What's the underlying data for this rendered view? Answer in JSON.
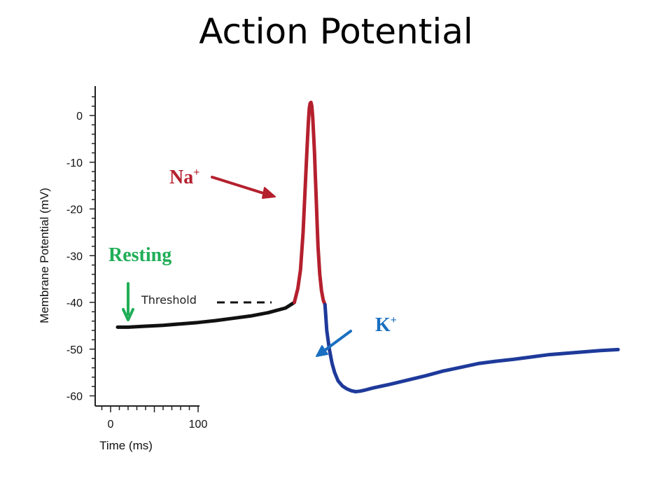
{
  "title": "Action Potential",
  "colors": {
    "resting_trace": "#111111",
    "depolarization_trace": "#b5202e",
    "repolarization_trace": "#1e3a9a",
    "na_label": "#b5202e",
    "k_label": "#1a6fc0",
    "resting_label": "#1fae56"
  },
  "annotations": {
    "na_label": "Na",
    "na_charge": "+",
    "k_label": "K",
    "k_charge": "+",
    "resting_label": "Resting",
    "threshold_label": "Threshold"
  },
  "chart_data": {
    "type": "line",
    "title": "",
    "xlabel": "Time (ms)",
    "ylabel": "Membrane Potential (mV)",
    "xlim": [
      -18,
      580
    ],
    "ylim": [
      -62,
      6
    ],
    "x_ticks": [
      0,
      100
    ],
    "y_ticks": [
      0,
      -10,
      -20,
      -30,
      -40,
      -50,
      -60
    ],
    "threshold_mv": -40,
    "grid": false,
    "legend": "none",
    "series": [
      {
        "segment": "resting",
        "x": [
          8,
          20,
          40,
          60,
          80,
          100,
          120,
          140,
          160,
          180,
          200,
          210
        ],
        "y": [
          -45.3,
          -45.3,
          -45.1,
          -44.9,
          -44.6,
          -44.3,
          -43.9,
          -43.4,
          -42.9,
          -42.2,
          -41.2,
          -40
        ]
      },
      {
        "segment": "depolarization",
        "x": [
          210,
          214,
          217,
          220,
          222,
          224,
          225,
          226,
          227,
          228,
          229,
          230,
          231,
          232,
          233,
          234,
          235,
          236,
          237,
          239,
          241,
          243,
          245
        ],
        "y": [
          -40,
          -37,
          -33,
          -25,
          -17,
          -9,
          -5,
          -1.5,
          1.5,
          2.6,
          2.8,
          2,
          -0.5,
          -4,
          -8,
          -13,
          -18,
          -23,
          -28,
          -34,
          -37.5,
          -39.5,
          -40.5
        ]
      },
      {
        "segment": "repolarization",
        "x": [
          245,
          247,
          250,
          253,
          256,
          260,
          265,
          270,
          275,
          280,
          285,
          290,
          300,
          310,
          320,
          340,
          360,
          380,
          400,
          420,
          440,
          460,
          480,
          500,
          520,
          540,
          560,
          580
        ],
        "y": [
          -40.5,
          -46,
          -50,
          -53,
          -55,
          -56.8,
          -57.9,
          -58.5,
          -58.9,
          -59.1,
          -59,
          -58.8,
          -58.3,
          -57.9,
          -57.5,
          -56.6,
          -55.7,
          -54.7,
          -53.9,
          -53.1,
          -52.6,
          -52.2,
          -51.7,
          -51.2,
          -50.9,
          -50.6,
          -50.3,
          -50.1
        ]
      }
    ]
  }
}
